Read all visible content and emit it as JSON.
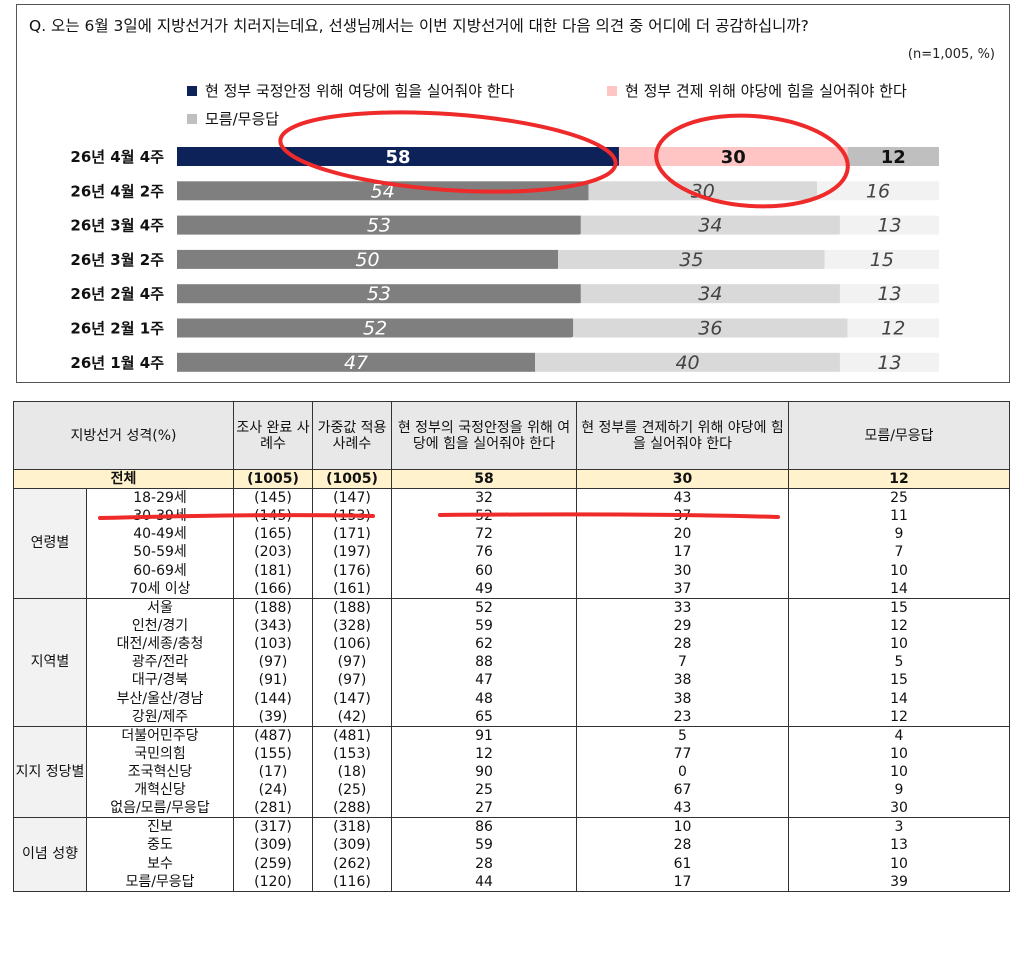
{
  "question": "Q. 오는 6월 3일에 지방선거가 치러지는데요, 선생님께서는 이번 지방선거에 대한 다음 의견 중 어디에 더 공감하십니까?",
  "sample_note": "(n=1,005, %)",
  "colors": {
    "top_gov": "#0d2259",
    "top_opp": "#ffc5c5",
    "top_dk": "#bfbfbf",
    "gov": "#7f7f7f",
    "opp": "#d9d9d9",
    "dk": "#f2f2f2",
    "annotation": "#ee2a2a"
  },
  "chart_data": {
    "type": "bar",
    "stacked": true,
    "orientation": "horizontal",
    "legend_position": "top-left",
    "categories": [
      "26년 4월 4주",
      "26년 4월 2주",
      "26년 3월 4주",
      "26년 3월 2주",
      "26년 2월 4주",
      "26년 2월 1주",
      "26년 1월 4주"
    ],
    "series": [
      {
        "name": "현 정부 국정안정 위해 여당에 힘을 실어줘야 한다",
        "values": [
          58,
          54,
          53,
          50,
          53,
          52,
          47
        ]
      },
      {
        "name": "현 정부 견제 위해 야당에 힘을 실어줘야 한다",
        "values": [
          30,
          30,
          34,
          35,
          34,
          36,
          40
        ]
      },
      {
        "name": "모름/무응답",
        "values": [
          12,
          16,
          13,
          15,
          13,
          12,
          13
        ]
      }
    ],
    "xlim": [
      0,
      100
    ]
  },
  "table": {
    "headers": {
      "category": "지방선거 성격(%)",
      "completed": "조사 완료 사례수",
      "weighted": "가중값 적용 사례수",
      "gov": "현 정부의 국정안정을 위해 여당에 힘을 실어줘야 한다",
      "opp": "현 정부를 견제하기 위해 야당에 힘을 실어줘야 한다",
      "dk": "모름/무응답"
    },
    "total": {
      "label": "전체",
      "completed": "(1005)",
      "weighted": "(1005)",
      "gov": "58",
      "opp": "30",
      "dk": "12"
    },
    "groups": [
      {
        "name": "연령별",
        "rows": [
          {
            "label": "18-29세",
            "completed": "(145)",
            "weighted": "(147)",
            "gov": "32",
            "opp": "43",
            "dk": "25"
          },
          {
            "label": "30-39세",
            "completed": "(145)",
            "weighted": "(153)",
            "gov": "52",
            "opp": "37",
            "dk": "11"
          },
          {
            "label": "40-49세",
            "completed": "(165)",
            "weighted": "(171)",
            "gov": "72",
            "opp": "20",
            "dk": "9"
          },
          {
            "label": "50-59세",
            "completed": "(203)",
            "weighted": "(197)",
            "gov": "76",
            "opp": "17",
            "dk": "7"
          },
          {
            "label": "60-69세",
            "completed": "(181)",
            "weighted": "(176)",
            "gov": "60",
            "opp": "30",
            "dk": "10"
          },
          {
            "label": "70세 이상",
            "completed": "(166)",
            "weighted": "(161)",
            "gov": "49",
            "opp": "37",
            "dk": "14"
          }
        ]
      },
      {
        "name": "지역별",
        "rows": [
          {
            "label": "서울",
            "completed": "(188)",
            "weighted": "(188)",
            "gov": "52",
            "opp": "33",
            "dk": "15"
          },
          {
            "label": "인천/경기",
            "completed": "(343)",
            "weighted": "(328)",
            "gov": "59",
            "opp": "29",
            "dk": "12"
          },
          {
            "label": "대전/세종/충청",
            "completed": "(103)",
            "weighted": "(106)",
            "gov": "62",
            "opp": "28",
            "dk": "10"
          },
          {
            "label": "광주/전라",
            "completed": "(97)",
            "weighted": "(97)",
            "gov": "88",
            "opp": "7",
            "dk": "5"
          },
          {
            "label": "대구/경북",
            "completed": "(91)",
            "weighted": "(97)",
            "gov": "47",
            "opp": "38",
            "dk": "15"
          },
          {
            "label": "부산/울산/경남",
            "completed": "(144)",
            "weighted": "(147)",
            "gov": "48",
            "opp": "38",
            "dk": "14"
          },
          {
            "label": "강원/제주",
            "completed": "(39)",
            "weighted": "(42)",
            "gov": "65",
            "opp": "23",
            "dk": "12"
          }
        ]
      },
      {
        "name": "지지 정당별",
        "rows": [
          {
            "label": "더불어민주당",
            "completed": "(487)",
            "weighted": "(481)",
            "gov": "91",
            "opp": "5",
            "dk": "4"
          },
          {
            "label": "국민의힘",
            "completed": "(155)",
            "weighted": "(153)",
            "gov": "12",
            "opp": "77",
            "dk": "10"
          },
          {
            "label": "조국혁신당",
            "completed": "(17)",
            "weighted": "(18)",
            "gov": "90",
            "opp": "0",
            "dk": "10"
          },
          {
            "label": "개혁신당",
            "completed": "(24)",
            "weighted": "(25)",
            "gov": "25",
            "opp": "67",
            "dk": "9"
          },
          {
            "label": "없음/모름/무응답",
            "completed": "(281)",
            "weighted": "(288)",
            "gov": "27",
            "opp": "43",
            "dk": "30"
          }
        ]
      },
      {
        "name": "이념 성향",
        "rows": [
          {
            "label": "진보",
            "completed": "(317)",
            "weighted": "(318)",
            "gov": "86",
            "opp": "10",
            "dk": "3"
          },
          {
            "label": "중도",
            "completed": "(309)",
            "weighted": "(309)",
            "gov": "59",
            "opp": "28",
            "dk": "13"
          },
          {
            "label": "보수",
            "completed": "(259)",
            "weighted": "(262)",
            "gov": "28",
            "opp": "61",
            "dk": "10"
          },
          {
            "label": "모름/무응답",
            "completed": "(120)",
            "weighted": "(116)",
            "gov": "44",
            "opp": "17",
            "dk": "39"
          }
        ]
      }
    ]
  }
}
